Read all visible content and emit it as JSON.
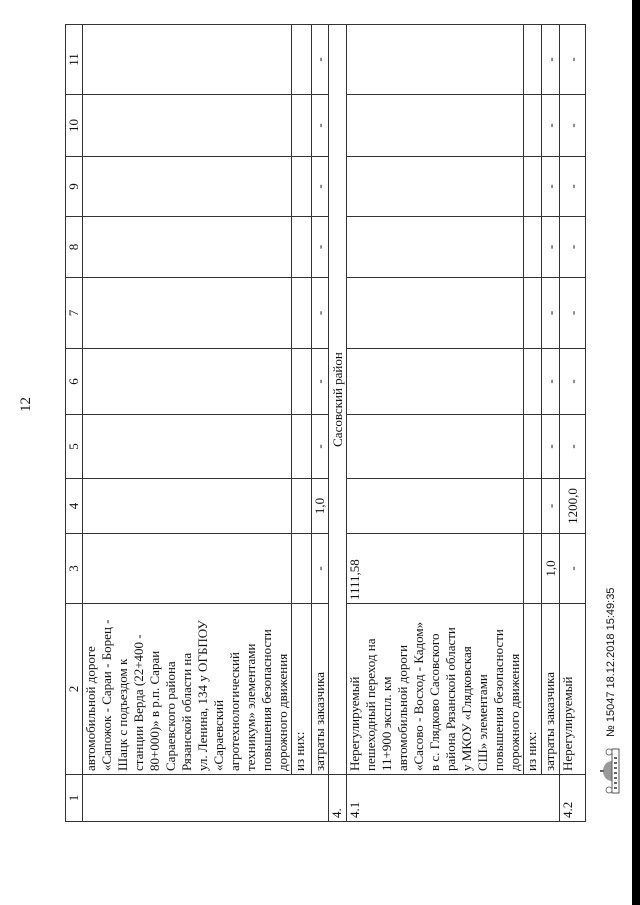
{
  "page_number": "12",
  "header": [
    "1",
    "2",
    "3",
    "4",
    "5",
    "6",
    "7",
    "8",
    "9",
    "10",
    "11"
  ],
  "rows": [
    {
      "type": "item",
      "num": "",
      "rowspan": 3,
      "lines": [
        "автомобильной дороге",
        "«Сапожок - Сараи - Борец -",
        "Шацк с подъездом к",
        "станции Верда (22+400 -",
        "80+000)» в р.п. Сараи",
        "Сараевского района",
        "Рязанской области на",
        "ул. Ленина, 134 у ОГБПОУ",
        "«Сараевский",
        "агротехнологический",
        "техникум» элементами",
        "повышения безопасности",
        "дорожного движения"
      ],
      "values": [
        "",
        "",
        "",
        "",
        "",
        "",
        "",
        "",
        ""
      ]
    },
    {
      "type": "sub",
      "label": "из них:",
      "values": [
        "",
        "",
        "",
        "",
        "",
        "",
        "",
        "",
        ""
      ]
    },
    {
      "type": "sub",
      "label": "затраты заказчика",
      "values": [
        "-",
        "1,0",
        "-",
        "-",
        "-",
        "-",
        "-",
        "-",
        "-"
      ]
    },
    {
      "type": "section",
      "num": "4.",
      "label": "Сасовский район"
    },
    {
      "type": "item",
      "num": "4.1",
      "rowspan": 3,
      "lines": [
        "Нерегулируемый",
        "пешеходный переход на",
        "11+900 экспл. км",
        "автомобильной дороги",
        "«Сасово - Восход - Кадом»",
        "в с. Глядково Сасовского",
        "района Рязанской области",
        "у МКОУ «Глядковская",
        "СШ» элементами",
        "повышения безопасности",
        "дорожного движения"
      ],
      "values": [
        "1111,58",
        "",
        "",
        "",
        "",
        "",
        "",
        "",
        ""
      ]
    },
    {
      "type": "sub",
      "label": "из них:",
      "values": [
        "",
        "",
        "",
        "",
        "",
        "",
        "",
        "",
        ""
      ]
    },
    {
      "type": "sub",
      "label": "затраты заказчика",
      "values": [
        "1,0",
        "-",
        "-",
        "-",
        "-",
        "-",
        "-",
        "-",
        "-"
      ]
    },
    {
      "type": "item",
      "num": "4.2",
      "rowspan": 1,
      "lines": [
        "Нерегулируемый"
      ],
      "values": [
        "-",
        "1200,0",
        "-",
        "-",
        "-",
        "-",
        "-",
        "-",
        "-"
      ]
    }
  ],
  "footer": {
    "logo": "Правительство Рязанской области",
    "stamp": "№ 15047  18.12.2018 15:49:35"
  }
}
